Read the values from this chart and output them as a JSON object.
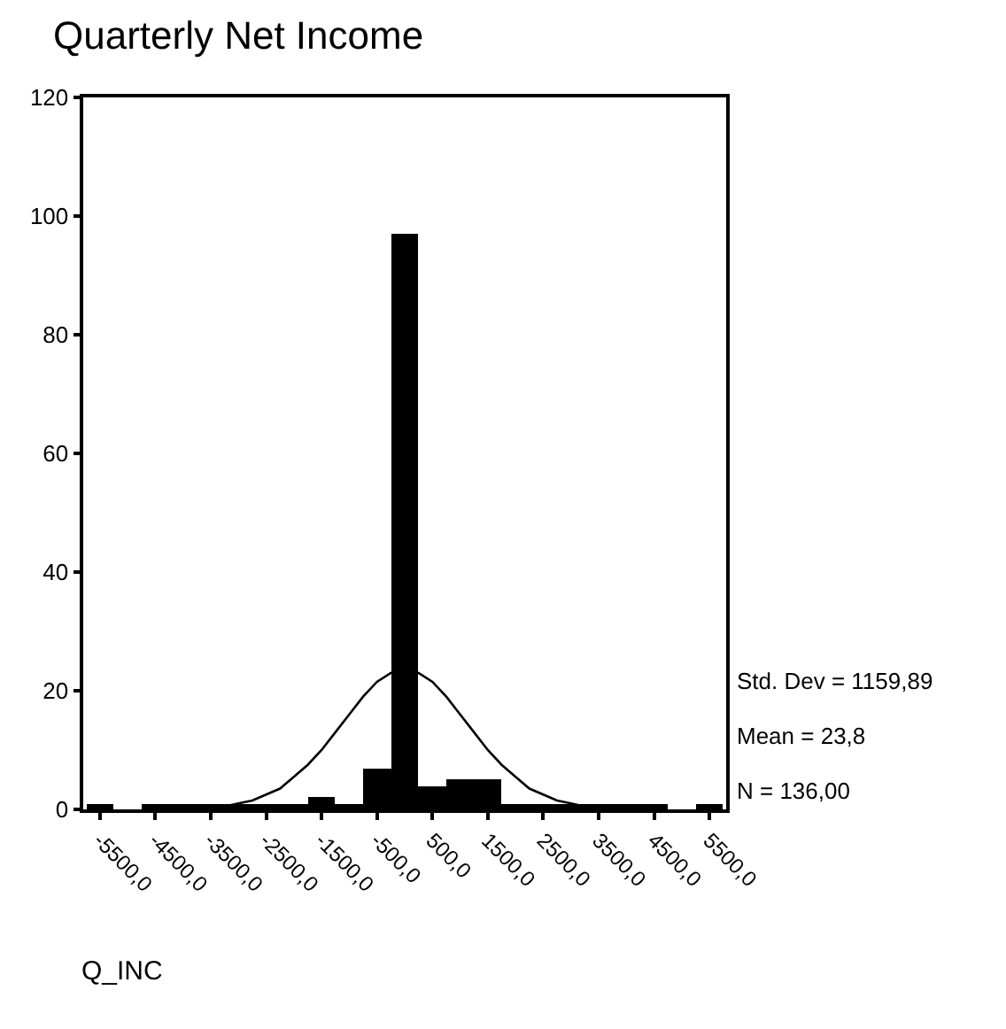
{
  "chart_data": {
    "type": "histogram",
    "title": "Quarterly Net Income",
    "xlabel": "Q_INC",
    "bins": [
      -5750,
      -5250,
      -4750,
      -4250,
      -3750,
      -3250,
      -2750,
      -2250,
      -1750,
      -1250,
      -750,
      -250,
      250,
      750,
      1250,
      1750,
      2250,
      2750,
      3250,
      3750,
      4250,
      4750,
      5250,
      5750
    ],
    "values": [
      1,
      0,
      1,
      1,
      1,
      1,
      1,
      1,
      2,
      1,
      7,
      97,
      4,
      5,
      5,
      1,
      1,
      1,
      1,
      1,
      1,
      0,
      1
    ],
    "color": "#000000",
    "series": [
      {
        "type": "line",
        "color": "#000000",
        "x": [
          -4000,
          -3500,
          -3250,
          -3000,
          -2750,
          -2500,
          -2250,
          -2000,
          -1750,
          -1500,
          -1250,
          -1000,
          -750,
          -500,
          -250,
          0,
          250,
          500,
          750,
          1000,
          1250,
          1500,
          1750,
          2000,
          2250,
          2500,
          2750,
          3000,
          3250,
          3500,
          4000
        ],
        "values": [
          0,
          0,
          0.5,
          1,
          1.5,
          2.5,
          3.5,
          5.5,
          7.5,
          10,
          13,
          16,
          19,
          21.5,
          23,
          23.5,
          23,
          21.5,
          19,
          16,
          13,
          10,
          7.5,
          5.5,
          3.5,
          2.5,
          1.5,
          1,
          0.5,
          0,
          0
        ]
      }
    ],
    "xlim": [
      -5800,
      5800
    ],
    "xticks": [
      {
        "value": -5500,
        "label": "-5500,0"
      },
      {
        "value": -4500,
        "label": "-4500,0"
      },
      {
        "value": -3500,
        "label": "-3500,0"
      },
      {
        "value": -2500,
        "label": "-2500,0"
      },
      {
        "value": -1500,
        "label": "-1500,0"
      },
      {
        "value": -500,
        "label": "-500,0"
      },
      {
        "value": 500,
        "label": "500,0"
      },
      {
        "value": 1500,
        "label": "1500,0"
      },
      {
        "value": 2500,
        "label": "2500,0"
      },
      {
        "value": 3500,
        "label": "3500,0"
      },
      {
        "value": 4500,
        "label": "4500,0"
      },
      {
        "value": 5500,
        "label": "5500,0"
      }
    ],
    "ylim": [
      0,
      120
    ],
    "yticks": [
      0,
      20,
      40,
      60,
      80,
      100,
      120
    ],
    "grid": false,
    "annotations": [
      "Std. Dev = 1159,89",
      "Mean = 23,8",
      "N = 136,00"
    ]
  }
}
